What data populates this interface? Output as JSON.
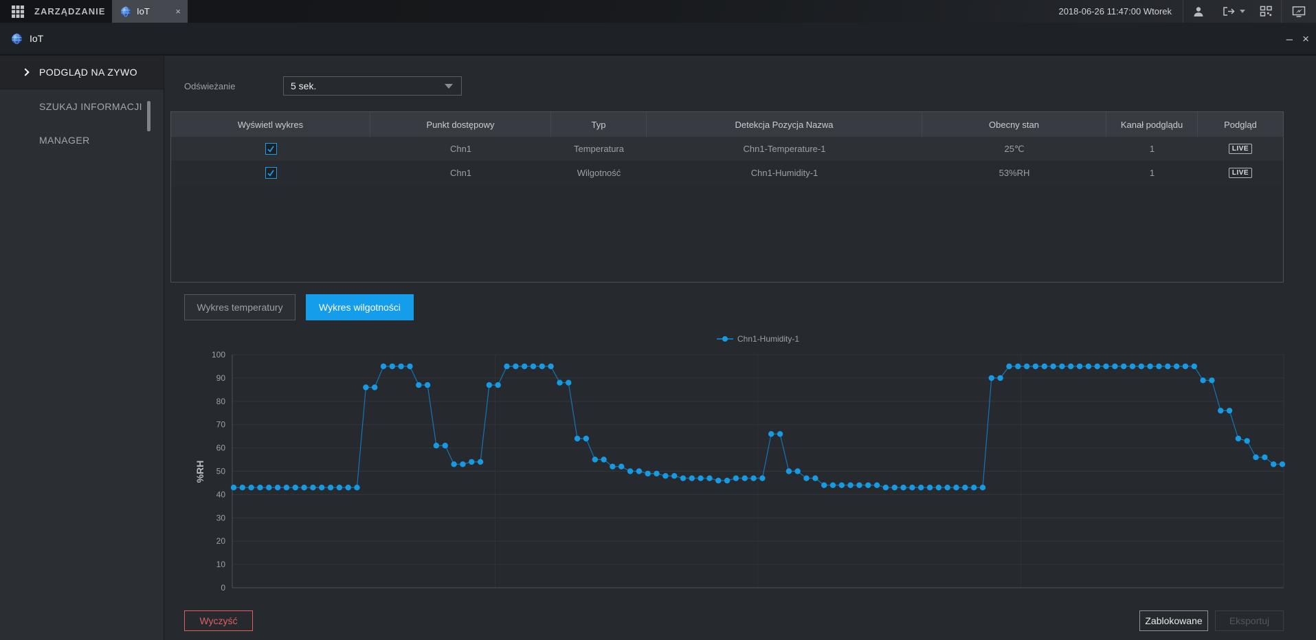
{
  "top_bar": {
    "menu_label": "ZARZĄDZANIE",
    "tab": {
      "label": "IoT",
      "close": "×"
    },
    "datetime": "2018-06-26 11:47:00 Wtorek",
    "icons": [
      "apps-grid-icon",
      "user-icon",
      "logout-icon",
      "qr-code-icon",
      "monitor-icon"
    ]
  },
  "window": {
    "title": "IoT",
    "minimize": "–",
    "close": "×"
  },
  "sidebar": {
    "items": [
      {
        "label": "PODGLĄD NA ZYWO",
        "selected": true
      },
      {
        "label": "SZUKAJ INFORMACJI",
        "selected": false
      },
      {
        "label": "MANAGER",
        "selected": false
      }
    ]
  },
  "refresh": {
    "label": "Odświeżanie",
    "value": "5 sek."
  },
  "table": {
    "headers": [
      "Wyświetl wykres",
      "Punkt dostępowy",
      "Typ",
      "Detekcja Pozycja Nazwa",
      "Obecny stan",
      "Kanał podglądu",
      "Podgląd"
    ],
    "rows": [
      {
        "checked": true,
        "access_point": "Chn1",
        "type": "Temperatura",
        "name": "Chn1-Temperature-1",
        "state": "25℃",
        "channel": "1",
        "preview": "LIVE"
      },
      {
        "checked": true,
        "access_point": "Chn1",
        "type": "Wilgotność",
        "name": "Chn1-Humidity-1",
        "state": "53%RH",
        "channel": "1",
        "preview": "LIVE"
      }
    ]
  },
  "chart_tabs": [
    {
      "label": "Wykres temperatury",
      "active": false
    },
    {
      "label": "Wykres wilgotności",
      "active": true
    }
  ],
  "buttons": {
    "clear": "Wyczyść",
    "locked": "Zablokowane",
    "export": "Eksportuj"
  },
  "colors": {
    "accent": "#149deb",
    "point": "#189ae3",
    "line": "#1576b5",
    "danger": "#e06060"
  },
  "chart_data": {
    "type": "line",
    "title": "",
    "ylabel": "%RH",
    "ylim": [
      0,
      100
    ],
    "y_ticks": [
      0,
      10,
      20,
      30,
      40,
      50,
      60,
      70,
      80,
      90,
      100
    ],
    "grid": true,
    "legend_position": "top-center",
    "x_labels_visible": false,
    "series": [
      {
        "name": "Chn1-Humidity-1",
        "values": [
          43,
          43,
          43,
          43,
          43,
          43,
          43,
          43,
          43,
          43,
          43,
          43,
          43,
          43,
          43,
          86,
          86,
          95,
          95,
          95,
          95,
          87,
          87,
          61,
          61,
          53,
          53,
          54,
          54,
          87,
          87,
          95,
          95,
          95,
          95,
          95,
          95,
          88,
          88,
          64,
          64,
          55,
          55,
          52,
          52,
          50,
          50,
          49,
          49,
          48,
          48,
          47,
          47,
          47,
          47,
          46,
          46,
          47,
          47,
          47,
          47,
          66,
          66,
          50,
          50,
          47,
          47,
          44,
          44,
          44,
          44,
          44,
          44,
          44,
          43,
          43,
          43,
          43,
          43,
          43,
          43,
          43,
          43,
          43,
          43,
          43,
          90,
          90,
          95,
          95,
          95,
          95,
          95,
          95,
          95,
          95,
          95,
          95,
          95,
          95,
          95,
          95,
          95,
          95,
          95,
          95,
          95,
          95,
          95,
          95,
          89,
          89,
          76,
          76,
          64,
          63,
          56,
          56,
          53,
          53
        ]
      }
    ]
  }
}
